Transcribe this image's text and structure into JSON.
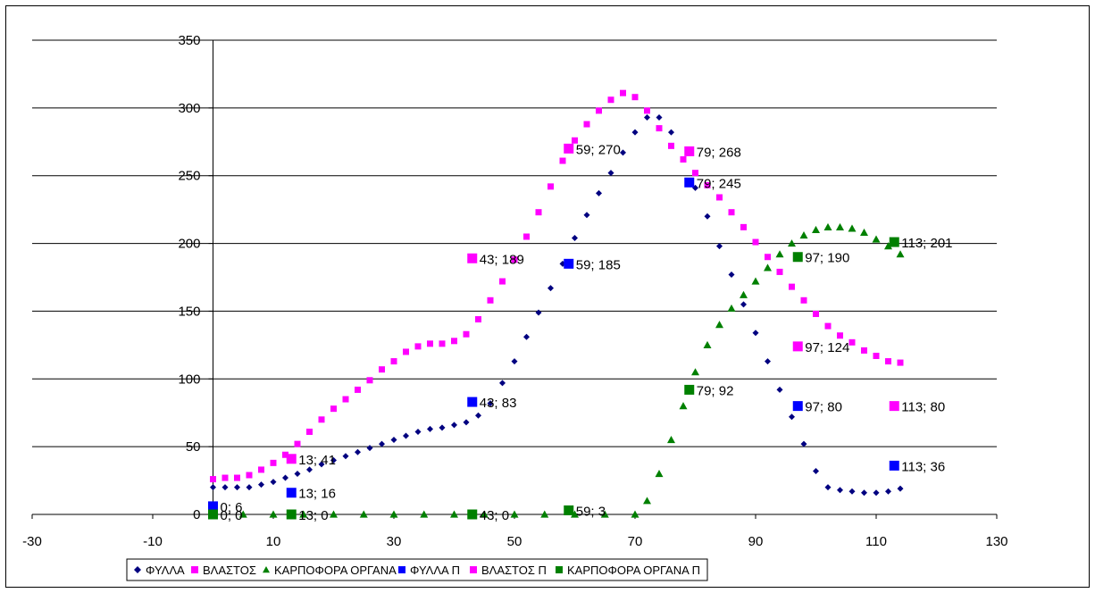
{
  "chart_data": {
    "type": "scatter",
    "title": "",
    "xlabel": "",
    "ylabel": "",
    "xlim": [
      -30,
      130
    ],
    "ylim": [
      0,
      350
    ],
    "x_ticks": [
      "-30",
      "-10",
      "10",
      "30",
      "50",
      "70",
      "90",
      "110",
      "130"
    ],
    "y_ticks": [
      "0",
      "50",
      "100",
      "150",
      "200",
      "250",
      "300",
      "350"
    ],
    "grid": "horizontal",
    "legend_position": "bottom",
    "series": [
      {
        "name": "ΦΥΛΛΑ",
        "marker": "diamond",
        "color": "#000080",
        "x": [
          0,
          2,
          4,
          6,
          8,
          10,
          12,
          14,
          16,
          18,
          20,
          22,
          24,
          26,
          28,
          30,
          32,
          34,
          36,
          38,
          40,
          42,
          44,
          46,
          48,
          50,
          52,
          54,
          56,
          58,
          60,
          62,
          64,
          66,
          68,
          70,
          72,
          74,
          76,
          78,
          80,
          82,
          84,
          86,
          88,
          90,
          92,
          94,
          96,
          98,
          100,
          102,
          104,
          106,
          108,
          110,
          112,
          114
        ],
        "y": [
          20,
          20,
          20,
          20,
          22,
          24,
          27,
          30,
          33,
          37,
          40,
          43,
          46,
          49,
          52,
          55,
          58,
          61,
          63,
          64,
          66,
          68,
          73,
          82,
          97,
          113,
          131,
          149,
          167,
          185,
          204,
          221,
          237,
          252,
          267,
          282,
          293,
          293,
          282,
          262,
          241,
          220,
          198,
          177,
          155,
          134,
          113,
          92,
          72,
          52,
          32,
          20,
          18,
          17,
          16,
          16,
          17,
          19
        ]
      },
      {
        "name": "ΒΛΑΣΤΟΣ",
        "marker": "square",
        "color": "#ff00ff",
        "x": [
          0,
          2,
          4,
          6,
          8,
          10,
          12,
          14,
          16,
          18,
          20,
          22,
          24,
          26,
          28,
          30,
          32,
          34,
          36,
          38,
          40,
          42,
          44,
          46,
          48,
          50,
          52,
          54,
          56,
          58,
          60,
          62,
          64,
          66,
          68,
          70,
          72,
          74,
          76,
          78,
          80,
          82,
          84,
          86,
          88,
          90,
          92,
          94,
          96,
          98,
          100,
          102,
          104,
          106,
          108,
          110,
          112,
          114
        ],
        "y": [
          26,
          27,
          27,
          29,
          33,
          38,
          44,
          52,
          61,
          70,
          78,
          85,
          92,
          99,
          107,
          113,
          120,
          124,
          126,
          126,
          128,
          133,
          144,
          158,
          172,
          188,
          205,
          223,
          242,
          261,
          276,
          288,
          298,
          306,
          311,
          308,
          298,
          285,
          272,
          262,
          252,
          243,
          234,
          223,
          212,
          201,
          190,
          179,
          168,
          158,
          148,
          139,
          132,
          127,
          121,
          117,
          113,
          112
        ]
      },
      {
        "name": "ΚΑΡΠΟΦΟΡΑ ΟΡΓΑΝΑ",
        "marker": "triangle",
        "color": "#008000",
        "x": [
          0,
          5,
          10,
          15,
          20,
          25,
          30,
          35,
          40,
          45,
          50,
          55,
          60,
          65,
          70,
          72,
          74,
          76,
          78,
          80,
          82,
          84,
          86,
          88,
          90,
          92,
          94,
          96,
          98,
          100,
          102,
          104,
          106,
          108,
          110,
          112,
          114
        ],
        "y": [
          0,
          0,
          0,
          0,
          0,
          0,
          0,
          0,
          0,
          0,
          0,
          0,
          0,
          0,
          0,
          10,
          30,
          55,
          80,
          105,
          125,
          140,
          152,
          162,
          172,
          182,
          192,
          200,
          206,
          210,
          212,
          212,
          211,
          208,
          203,
          198,
          192
        ]
      },
      {
        "name": "ΦΥΛΛΑ Π",
        "marker": "square",
        "color": "#0000ff",
        "x": [
          0,
          13,
          43,
          59,
          79,
          97,
          113
        ],
        "y": [
          6,
          16,
          83,
          185,
          245,
          80,
          36
        ],
        "labels": [
          "0; 6",
          "13; 16",
          "43; 83",
          "59; 185",
          "79; 245",
          "97; 80",
          "113; 36"
        ]
      },
      {
        "name": "ΒΛΑΣΤΟΣ Π",
        "marker": "square",
        "color": "#ff00ff",
        "x": [
          13,
          43,
          59,
          79,
          97,
          113
        ],
        "y": [
          41,
          189,
          270,
          268,
          124,
          80
        ],
        "labels": [
          "13; 41",
          "43; 189",
          "59; 270",
          "79; 268",
          "97; 124",
          "113; 80"
        ]
      },
      {
        "name": "ΚΑΡΠΟΦΟΡΑ ΟΡΓΑΝΑ Π",
        "marker": "square",
        "color": "#008000",
        "x": [
          0,
          13,
          43,
          59,
          79,
          97,
          113
        ],
        "y": [
          0,
          0,
          0,
          3,
          92,
          190,
          201
        ],
        "labels": [
          "0; 0",
          "13; 0",
          "43; 0",
          "59; 3",
          "79; 92",
          "97; 190",
          "113; 201"
        ]
      }
    ]
  }
}
